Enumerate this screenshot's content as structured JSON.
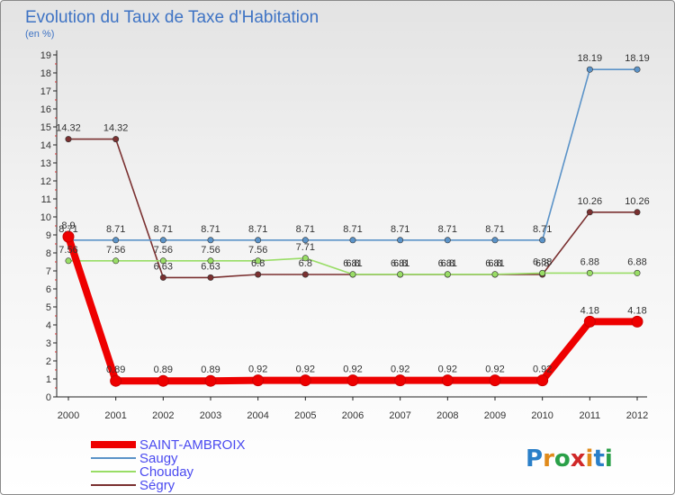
{
  "chart_data": {
    "type": "line",
    "title": "Evolution du Taux de Taxe d'Habitation",
    "subtitle": "(en %)",
    "x": [
      "2000",
      "2001",
      "2002",
      "2003",
      "2004",
      "2005",
      "2006",
      "2007",
      "2008",
      "2009",
      "2010",
      "2011",
      "2012"
    ],
    "ylim": [
      0,
      19
    ],
    "yticks": [
      "0",
      "1",
      "2",
      "3",
      "4",
      "5",
      "6",
      "7",
      "8",
      "9",
      "10",
      "11",
      "12",
      "13",
      "14",
      "15",
      "16",
      "17",
      "18",
      "19"
    ],
    "grid": false,
    "legend_position": "bottom-left",
    "series": [
      {
        "name": "SAINT-AMBROIX",
        "color": "#ee0000",
        "values": [
          8.9,
          0.89,
          0.89,
          0.89,
          0.92,
          0.92,
          0.92,
          0.92,
          0.92,
          0.92,
          0.92,
          4.18,
          4.18
        ],
        "labels": [
          "8.9",
          "0.89",
          "0.89",
          "0.89",
          "0.92",
          "0.92",
          "0.92",
          "0.92",
          "0.92",
          "0.92",
          "0.92",
          "4.18",
          "4.18"
        ]
      },
      {
        "name": "Saugy",
        "color": "#5b93c8",
        "values": [
          8.71,
          8.71,
          8.71,
          8.71,
          8.71,
          8.71,
          8.71,
          8.71,
          8.71,
          8.71,
          8.71,
          18.19,
          18.19
        ],
        "labels": [
          "8.71",
          "8.71",
          "8.71",
          "8.71",
          "8.71",
          "8.71",
          "8.71",
          "8.71",
          "8.71",
          "8.71",
          "8.71",
          "18.19",
          "18.19"
        ]
      },
      {
        "name": "Chouday",
        "color": "#99dd66",
        "values": [
          7.56,
          7.56,
          7.56,
          7.56,
          7.56,
          7.71,
          6.81,
          6.81,
          6.81,
          6.81,
          6.88,
          6.88,
          6.88
        ],
        "labels": [
          "7.56",
          "7.56",
          "7.56",
          "7.56",
          "7.56",
          "7.71",
          "6.81",
          "6.81",
          "6.81",
          "6.81",
          "6.88",
          "6.88",
          "6.88"
        ]
      },
      {
        "name": "Ségry",
        "color": "#7a3030",
        "values": [
          14.32,
          14.32,
          6.63,
          6.63,
          6.8,
          6.8,
          6.8,
          6.8,
          6.8,
          6.8,
          6.8,
          10.26,
          10.26
        ],
        "labels": [
          "14.32",
          "14.32",
          "6.63",
          "6.63",
          "6.8",
          "6.8",
          "6.8",
          "6.8",
          "6.8",
          "6.8",
          "6.8",
          "10.26",
          "10.26"
        ]
      }
    ]
  },
  "logo": {
    "text": "Proxiti",
    "letters": [
      "P",
      "r",
      "o",
      "x",
      "i",
      "t",
      "i"
    ],
    "colors": [
      "#2a7fc8",
      "#e08a1a",
      "#2aa048",
      "#d02828",
      "#e08a1a",
      "#2a7fc8",
      "#2aa048"
    ]
  }
}
